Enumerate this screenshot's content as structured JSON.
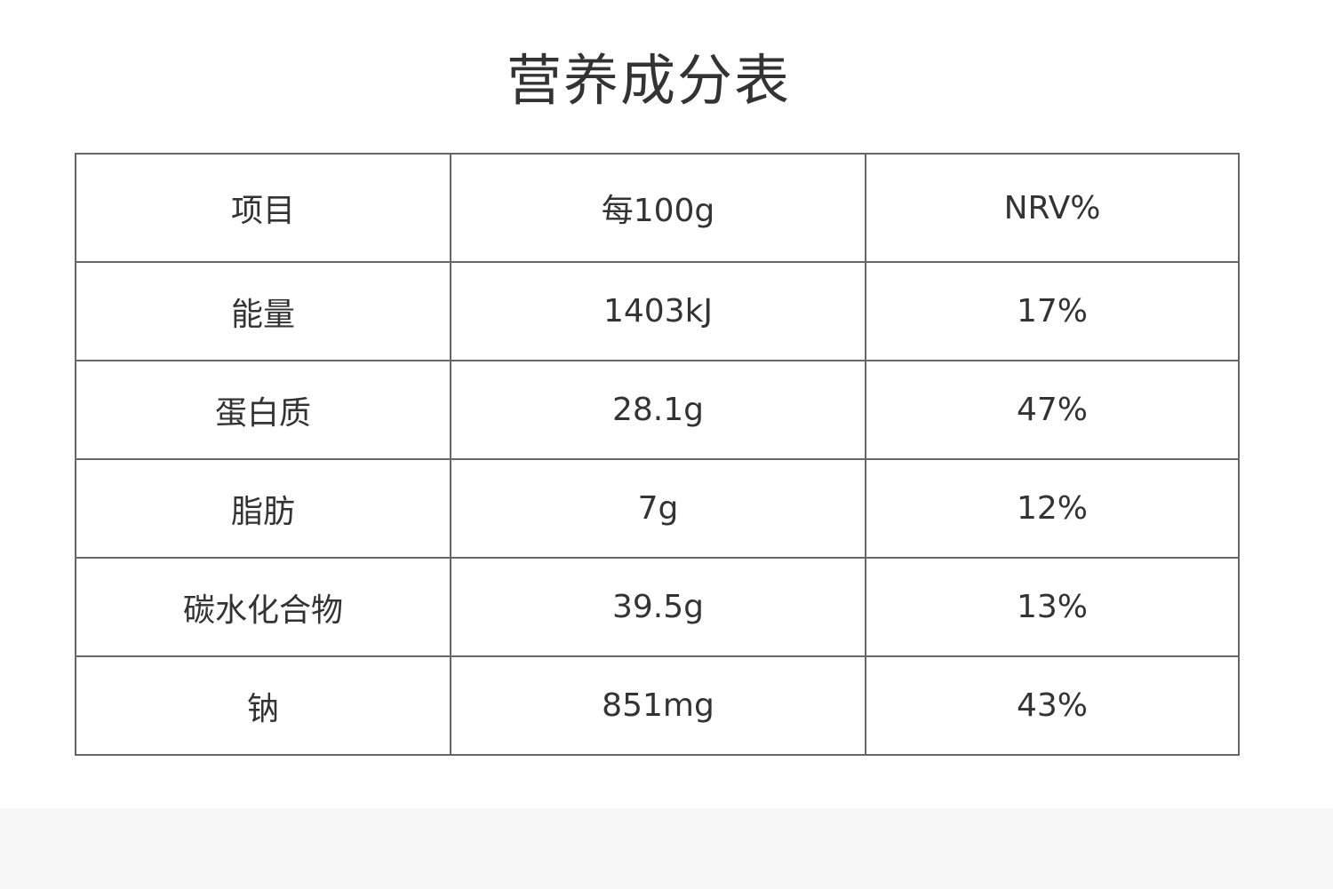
{
  "title": "营养成分表",
  "table": {
    "header": [
      "项目",
      "每100g",
      "NRV%"
    ],
    "rows": [
      [
        "能量",
        "1403kJ",
        "17%"
      ],
      [
        "蛋白质",
        "28.1g",
        "47%"
      ],
      [
        "脂肪",
        "7g",
        "12%"
      ],
      [
        "碳水化合物",
        "39.5g",
        "13%"
      ],
      [
        "钠",
        "851mg",
        "43%"
      ]
    ]
  }
}
